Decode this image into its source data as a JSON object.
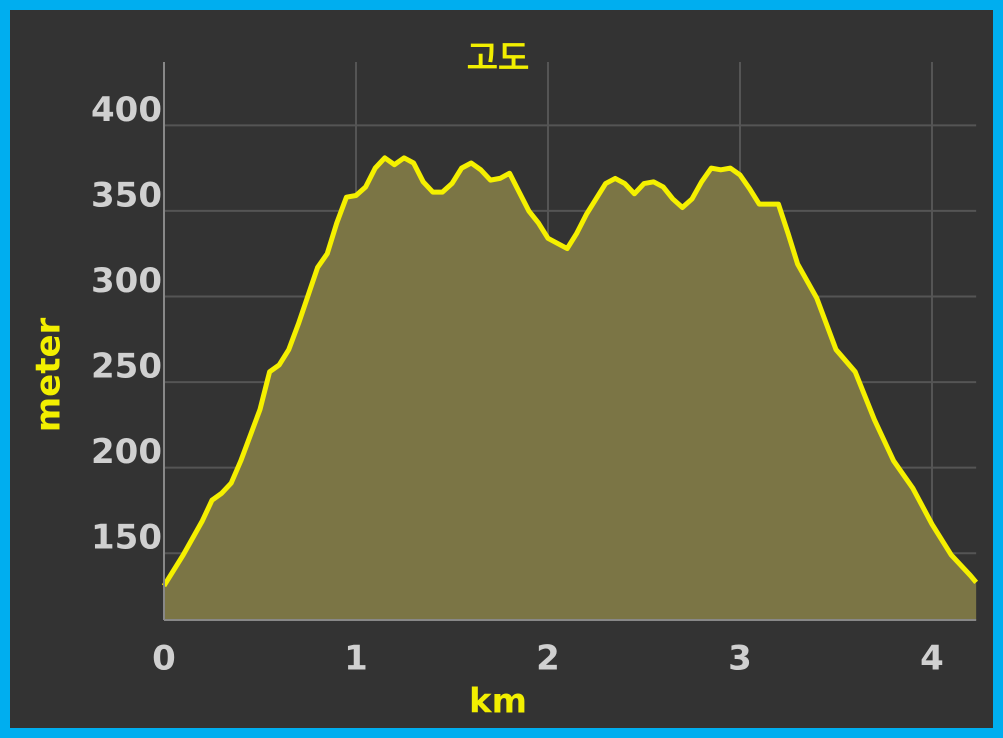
{
  "chart_data": {
    "type": "area",
    "title": "고도",
    "x_label": "km",
    "y_label": "meter",
    "x": [
      0,
      0.1,
      0.2,
      0.25,
      0.3,
      0.35,
      0.4,
      0.5,
      0.55,
      0.6,
      0.65,
      0.7,
      0.8,
      0.85,
      0.9,
      0.95,
      1.0,
      1.05,
      1.1,
      1.15,
      1.2,
      1.25,
      1.3,
      1.35,
      1.4,
      1.45,
      1.5,
      1.55,
      1.6,
      1.65,
      1.7,
      1.75,
      1.8,
      1.85,
      1.9,
      1.95,
      2.0,
      2.05,
      2.1,
      2.15,
      2.2,
      2.25,
      2.3,
      2.35,
      2.4,
      2.45,
      2.5,
      2.55,
      2.6,
      2.65,
      2.7,
      2.75,
      2.8,
      2.85,
      2.9,
      2.95,
      3.0,
      3.05,
      3.1,
      3.15,
      3.2,
      3.25,
      3.3,
      3.4,
      3.5,
      3.6,
      3.7,
      3.8,
      3.9,
      4.0,
      4.1,
      4.2,
      4.23
    ],
    "y": [
      131,
      149,
      169,
      181,
      185,
      191,
      204,
      234,
      256,
      260,
      269,
      284,
      317,
      325,
      343,
      358,
      359,
      364,
      375,
      381,
      377,
      381,
      378,
      367,
      361,
      361,
      366,
      375,
      378,
      374,
      368,
      369,
      372,
      361,
      350,
      343,
      334,
      331,
      328,
      337,
      348,
      357,
      366,
      369,
      366,
      360,
      366,
      367,
      364,
      357,
      352,
      357,
      367,
      375,
      374,
      375,
      371,
      363,
      354,
      354,
      354,
      337,
      319,
      299,
      269,
      256,
      228,
      204,
      188,
      167,
      149,
      137,
      133
    ],
    "line_color": "#f5f000",
    "fill_color": "#7b7545",
    "xlim": [
      0,
      4.23
    ],
    "ylim": [
      111,
      437
    ],
    "xticks": [
      0,
      1,
      2,
      3,
      4
    ],
    "yticks": [
      150,
      200,
      250,
      300,
      350,
      400
    ],
    "grid": true
  }
}
